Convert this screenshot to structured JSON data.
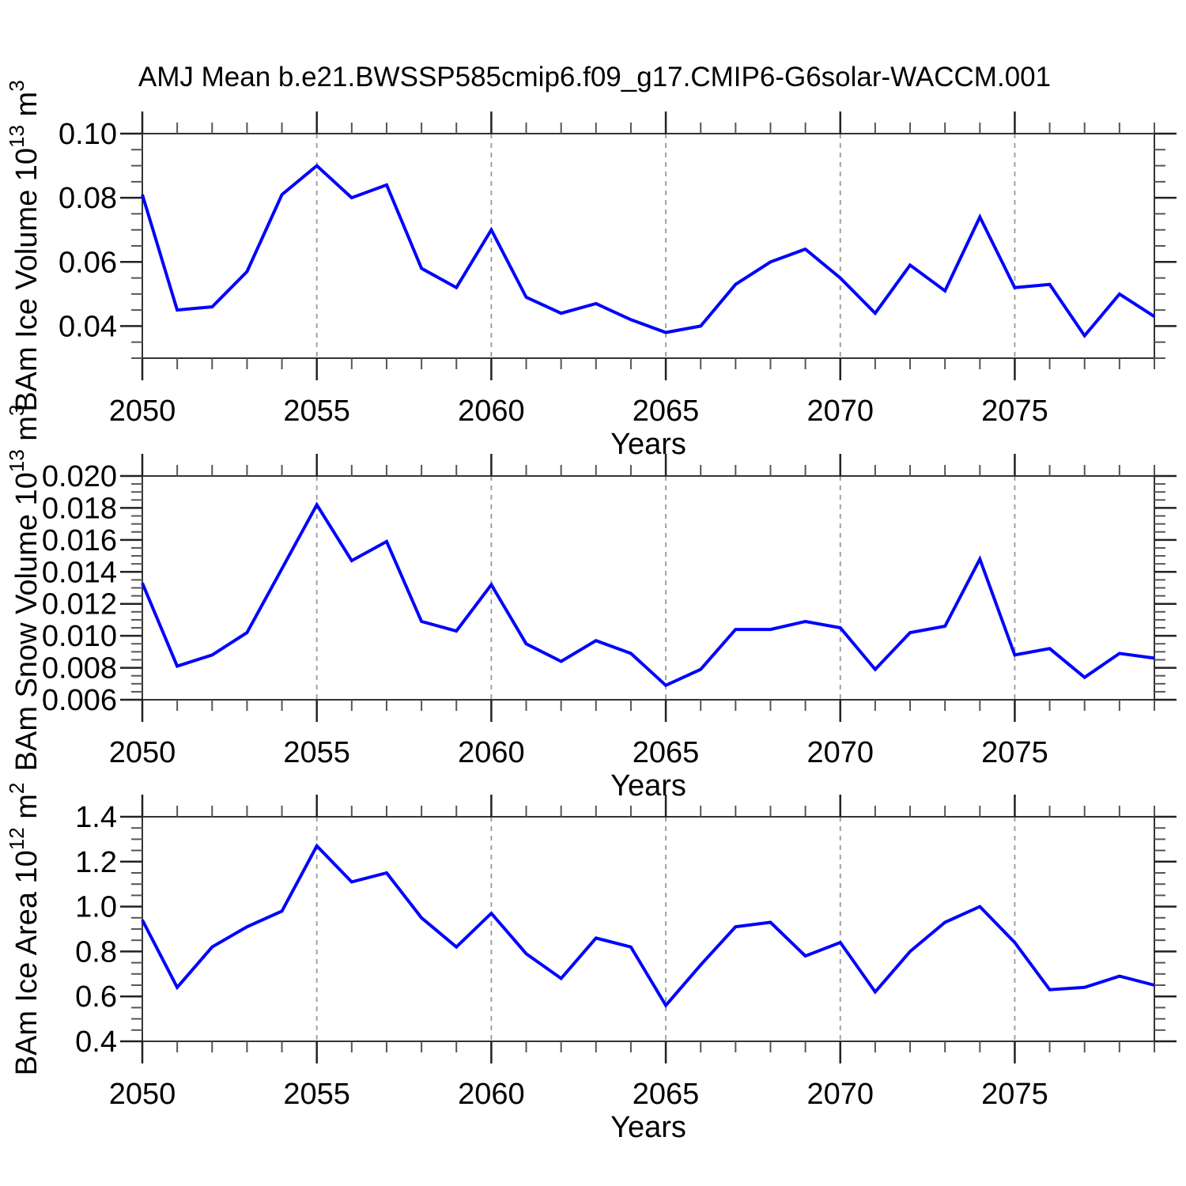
{
  "title": "AMJ Mean b.e21.BWSSP585cmip6.f09_g17.CMIP6-G6solar-WACCM.001",
  "colors": {
    "line": "#0000ff",
    "frame": "#333333",
    "major_tick": "#222222",
    "minor_tick": "#555555",
    "grid": "#999999",
    "text": "#000000"
  },
  "chart_data": [
    {
      "type": "line",
      "name": "ice-volume",
      "ylabel": "BAm Ice Volume 10^13 m^3",
      "ylabel_parts": [
        {
          "t": "BAm Ice Volume 10",
          "sup": false
        },
        {
          "t": "13",
          "sup": true
        },
        {
          "t": " m",
          "sup": false
        },
        {
          "t": "3",
          "sup": true
        }
      ],
      "xlabel": "Years",
      "x": [
        2050,
        2051,
        2052,
        2053,
        2054,
        2055,
        2056,
        2057,
        2058,
        2059,
        2060,
        2061,
        2062,
        2063,
        2064,
        2065,
        2066,
        2067,
        2068,
        2069,
        2070,
        2071,
        2072,
        2073,
        2074,
        2075,
        2076,
        2077,
        2078,
        2079
      ],
      "values": [
        0.081,
        0.045,
        0.046,
        0.057,
        0.081,
        0.09,
        0.08,
        0.084,
        0.058,
        0.052,
        0.07,
        0.049,
        0.044,
        0.047,
        0.042,
        0.038,
        0.04,
        0.053,
        0.06,
        0.064,
        0.055,
        0.044,
        0.059,
        0.051,
        0.074,
        0.052,
        0.053,
        0.037,
        0.05,
        0.043
      ],
      "xlim": [
        2050,
        2079
      ],
      "ylim": [
        0.03,
        0.1
      ],
      "yticks": [
        {
          "v": 0.04,
          "label": "0.04"
        },
        {
          "v": 0.06,
          "label": "0.06"
        },
        {
          "v": 0.08,
          "label": "0.08"
        },
        {
          "v": 0.1,
          "label": "0.10"
        }
      ],
      "yminor": 0.005,
      "xticks": [
        {
          "v": 2050,
          "label": "2050"
        },
        {
          "v": 2055,
          "label": "2055"
        },
        {
          "v": 2060,
          "label": "2060"
        },
        {
          "v": 2065,
          "label": "2065"
        },
        {
          "v": 2070,
          "label": "2070"
        },
        {
          "v": 2075,
          "label": "2075"
        }
      ],
      "xminor": 1,
      "grid_x": [
        2055,
        2060,
        2065,
        2070,
        2075
      ],
      "grid": true,
      "legend": "none"
    },
    {
      "type": "line",
      "name": "snow-volume",
      "ylabel": "BAm Snow Volume 10^13 m^3",
      "ylabel_parts": [
        {
          "t": "BAm Snow Volume 10",
          "sup": false
        },
        {
          "t": "13",
          "sup": true
        },
        {
          "t": " m",
          "sup": false
        },
        {
          "t": "3",
          "sup": true
        }
      ],
      "xlabel": "Years",
      "x": [
        2050,
        2051,
        2052,
        2053,
        2054,
        2055,
        2056,
        2057,
        2058,
        2059,
        2060,
        2061,
        2062,
        2063,
        2064,
        2065,
        2066,
        2067,
        2068,
        2069,
        2070,
        2071,
        2072,
        2073,
        2074,
        2075,
        2076,
        2077,
        2078,
        2079
      ],
      "values": [
        0.0133,
        0.0081,
        0.0088,
        0.0102,
        0.0142,
        0.0182,
        0.0147,
        0.0159,
        0.0109,
        0.0103,
        0.0132,
        0.0095,
        0.0084,
        0.0097,
        0.0089,
        0.0069,
        0.0079,
        0.0104,
        0.0104,
        0.0109,
        0.0105,
        0.0079,
        0.0102,
        0.0106,
        0.0148,
        0.0088,
        0.0092,
        0.0074,
        0.0089,
        0.0086
      ],
      "xlim": [
        2050,
        2079
      ],
      "ylim": [
        0.006,
        0.02
      ],
      "yticks": [
        {
          "v": 0.006,
          "label": "0.006"
        },
        {
          "v": 0.008,
          "label": "0.008"
        },
        {
          "v": 0.01,
          "label": "0.010"
        },
        {
          "v": 0.012,
          "label": "0.012"
        },
        {
          "v": 0.014,
          "label": "0.014"
        },
        {
          "v": 0.016,
          "label": "0.016"
        },
        {
          "v": 0.018,
          "label": "0.018"
        },
        {
          "v": 0.02,
          "label": "0.020"
        }
      ],
      "yminor": 0.0005,
      "xticks": [
        {
          "v": 2050,
          "label": "2050"
        },
        {
          "v": 2055,
          "label": "2055"
        },
        {
          "v": 2060,
          "label": "2060"
        },
        {
          "v": 2065,
          "label": "2065"
        },
        {
          "v": 2070,
          "label": "2070"
        },
        {
          "v": 2075,
          "label": "2075"
        }
      ],
      "xminor": 1,
      "grid_x": [
        2055,
        2060,
        2065,
        2070,
        2075
      ],
      "grid": true,
      "legend": "none"
    },
    {
      "type": "line",
      "name": "ice-area",
      "ylabel": "BAm Ice Area 10^12 m^2",
      "ylabel_parts": [
        {
          "t": "BAm Ice Area 10",
          "sup": false
        },
        {
          "t": "12",
          "sup": true
        },
        {
          "t": " m",
          "sup": false
        },
        {
          "t": "2",
          "sup": true
        }
      ],
      "xlabel": "Years",
      "x": [
        2050,
        2051,
        2052,
        2053,
        2054,
        2055,
        2056,
        2057,
        2058,
        2059,
        2060,
        2061,
        2062,
        2063,
        2064,
        2065,
        2066,
        2067,
        2068,
        2069,
        2070,
        2071,
        2072,
        2073,
        2074,
        2075,
        2076,
        2077,
        2078,
        2079
      ],
      "values": [
        0.94,
        0.64,
        0.82,
        0.91,
        0.98,
        1.27,
        1.11,
        1.15,
        0.95,
        0.82,
        0.97,
        0.79,
        0.68,
        0.86,
        0.82,
        0.56,
        0.74,
        0.91,
        0.93,
        0.78,
        0.84,
        0.62,
        0.8,
        0.93,
        1.0,
        0.84,
        0.63,
        0.64,
        0.69,
        0.65
      ],
      "xlim": [
        2050,
        2079
      ],
      "ylim": [
        0.4,
        1.4
      ],
      "yticks": [
        {
          "v": 0.4,
          "label": "0.4"
        },
        {
          "v": 0.6,
          "label": "0.6"
        },
        {
          "v": 0.8,
          "label": "0.8"
        },
        {
          "v": 1.0,
          "label": "1.0"
        },
        {
          "v": 1.2,
          "label": "1.2"
        },
        {
          "v": 1.4,
          "label": "1.4"
        }
      ],
      "yminor": 0.05,
      "xticks": [
        {
          "v": 2050,
          "label": "2050"
        },
        {
          "v": 2055,
          "label": "2055"
        },
        {
          "v": 2060,
          "label": "2060"
        },
        {
          "v": 2065,
          "label": "2065"
        },
        {
          "v": 2070,
          "label": "2070"
        },
        {
          "v": 2075,
          "label": "2075"
        }
      ],
      "xminor": 1,
      "grid_x": [
        2055,
        2060,
        2065,
        2070,
        2075
      ],
      "grid": true,
      "legend": "none"
    }
  ]
}
